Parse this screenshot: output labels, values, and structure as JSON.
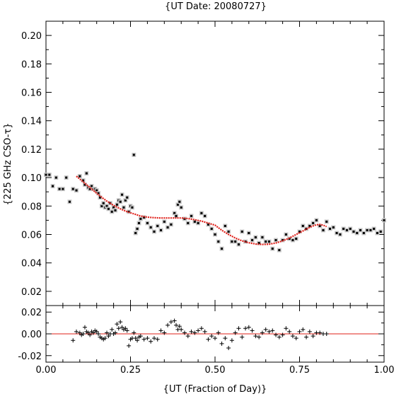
{
  "chart_data": {
    "type": "scatter",
    "title": "{UT Date: 20080727}",
    "xlabel": "{UT (Fraction of Day)}",
    "ylabel": "{225 GHz CSO-τ}",
    "xlim": [
      0.0,
      1.0
    ],
    "x_ticks": [
      "0.00",
      "0.25",
      "0.50",
      "0.75",
      "1.00"
    ],
    "main_panel": {
      "ylim": [
        0.01,
        0.21
      ],
      "y_ticks": [
        "0.02",
        "0.04",
        "0.06",
        "0.08",
        "0.10",
        "0.12",
        "0.14",
        "0.16",
        "0.18",
        "0.20"
      ],
      "series": [
        {
          "kind": "measurements",
          "color": "#000000",
          "x": [
            0.0,
            0.01,
            0.02,
            0.03,
            0.04,
            0.05,
            0.06,
            0.07,
            0.08,
            0.09,
            0.1,
            0.11,
            0.115,
            0.12,
            0.125,
            0.13,
            0.135,
            0.14,
            0.145,
            0.15,
            0.155,
            0.16,
            0.165,
            0.17,
            0.175,
            0.18,
            0.185,
            0.19,
            0.195,
            0.2,
            0.205,
            0.21,
            0.215,
            0.22,
            0.225,
            0.23,
            0.235,
            0.24,
            0.245,
            0.25,
            0.255,
            0.26,
            0.265,
            0.27,
            0.275,
            0.28,
            0.29,
            0.3,
            0.31,
            0.32,
            0.33,
            0.34,
            0.35,
            0.36,
            0.37,
            0.38,
            0.385,
            0.39,
            0.395,
            0.4,
            0.41,
            0.42,
            0.43,
            0.44,
            0.45,
            0.46,
            0.47,
            0.48,
            0.49,
            0.5,
            0.51,
            0.52,
            0.53,
            0.54,
            0.55,
            0.56,
            0.57,
            0.58,
            0.59,
            0.6,
            0.61,
            0.62,
            0.63,
            0.64,
            0.65,
            0.66,
            0.67,
            0.68,
            0.69,
            0.7,
            0.71,
            0.72,
            0.73,
            0.74,
            0.75,
            0.76,
            0.77,
            0.78,
            0.79,
            0.8,
            0.81,
            0.82,
            0.83,
            0.84,
            0.85,
            0.86,
            0.87,
            0.88,
            0.89,
            0.9,
            0.91,
            0.92,
            0.93,
            0.94,
            0.95,
            0.96,
            0.97,
            0.98,
            0.99,
            1.0
          ],
          "y": [
            0.102,
            0.102,
            0.094,
            0.1,
            0.092,
            0.092,
            0.1,
            0.083,
            0.092,
            0.091,
            0.101,
            0.098,
            0.095,
            0.103,
            0.093,
            0.092,
            0.094,
            0.092,
            0.092,
            0.091,
            0.089,
            0.086,
            0.08,
            0.082,
            0.079,
            0.08,
            0.078,
            0.082,
            0.076,
            0.079,
            0.077,
            0.081,
            0.084,
            0.083,
            0.088,
            0.079,
            0.084,
            0.086,
            0.076,
            0.08,
            0.079,
            0.116,
            0.061,
            0.064,
            0.068,
            0.071,
            0.072,
            0.068,
            0.065,
            0.062,
            0.066,
            0.063,
            0.069,
            0.065,
            0.067,
            0.075,
            0.073,
            0.081,
            0.083,
            0.079,
            0.071,
            0.068,
            0.073,
            0.069,
            0.068,
            0.075,
            0.073,
            0.067,
            0.064,
            0.06,
            0.055,
            0.05,
            0.066,
            0.062,
            0.055,
            0.055,
            0.053,
            0.062,
            0.055,
            0.061,
            0.056,
            0.058,
            0.054,
            0.058,
            0.055,
            0.055,
            0.05,
            0.056,
            0.049,
            0.056,
            0.06,
            0.057,
            0.056,
            0.057,
            0.062,
            0.066,
            0.064,
            0.066,
            0.068,
            0.07,
            0.066,
            0.063,
            0.069,
            0.064,
            0.065,
            0.061,
            0.06,
            0.064,
            0.063,
            0.064,
            0.062,
            0.061,
            0.063,
            0.061,
            0.063,
            0.063,
            0.064,
            0.061,
            0.062,
            0.07
          ]
        },
        {
          "kind": "fit",
          "color": "#e0201a",
          "x": [
            0.09,
            0.1,
            0.12,
            0.14,
            0.16,
            0.18,
            0.2,
            0.22,
            0.24,
            0.26,
            0.28,
            0.3,
            0.32,
            0.34,
            0.36,
            0.38,
            0.4,
            0.42,
            0.44,
            0.46,
            0.48,
            0.5,
            0.52,
            0.54,
            0.56,
            0.58,
            0.6,
            0.62,
            0.64,
            0.66,
            0.68,
            0.7,
            0.72,
            0.74,
            0.76,
            0.78,
            0.79,
            0.8,
            0.81,
            0.82,
            0.83
          ],
          "y": [
            0.101,
            0.099,
            0.095,
            0.091,
            0.087,
            0.0835,
            0.0805,
            0.078,
            0.076,
            0.0745,
            0.073,
            0.0722,
            0.0718,
            0.0716,
            0.0716,
            0.0716,
            0.0716,
            0.0712,
            0.0704,
            0.0694,
            0.068,
            0.0665,
            0.063,
            0.06,
            0.0575,
            0.0555,
            0.0542,
            0.0533,
            0.053,
            0.0532,
            0.054,
            0.0555,
            0.0575,
            0.06,
            0.0625,
            0.065,
            0.066,
            0.0668,
            0.067,
            0.0665,
            0.0655
          ]
        }
      ]
    },
    "residual_panel": {
      "ylim": [
        -0.026,
        0.026
      ],
      "y_ticks": [
        "0.02",
        "0.00",
        "-0.02"
      ],
      "zero_line_color": "#e0201a",
      "x": [
        0.08,
        0.09,
        0.1,
        0.105,
        0.11,
        0.115,
        0.12,
        0.125,
        0.13,
        0.135,
        0.14,
        0.145,
        0.15,
        0.155,
        0.16,
        0.165,
        0.17,
        0.175,
        0.18,
        0.185,
        0.19,
        0.195,
        0.2,
        0.205,
        0.21,
        0.215,
        0.22,
        0.225,
        0.23,
        0.235,
        0.24,
        0.245,
        0.25,
        0.255,
        0.26,
        0.265,
        0.27,
        0.275,
        0.28,
        0.29,
        0.3,
        0.31,
        0.32,
        0.33,
        0.34,
        0.35,
        0.36,
        0.37,
        0.38,
        0.385,
        0.39,
        0.395,
        0.4,
        0.41,
        0.42,
        0.43,
        0.44,
        0.45,
        0.46,
        0.47,
        0.48,
        0.49,
        0.5,
        0.51,
        0.52,
        0.53,
        0.54,
        0.55,
        0.56,
        0.57,
        0.58,
        0.59,
        0.6,
        0.61,
        0.62,
        0.63,
        0.64,
        0.65,
        0.66,
        0.67,
        0.68,
        0.69,
        0.7,
        0.71,
        0.72,
        0.73,
        0.74,
        0.75,
        0.76,
        0.77,
        0.78,
        0.79,
        0.8,
        0.81,
        0.82,
        0.83
      ],
      "y": [
        -0.006,
        0.002,
        0.001,
        -0.001,
        0.0,
        0.006,
        0.002,
        0.001,
        -0.001,
        0.002,
        0.001,
        0.003,
        0.002,
        0.0,
        -0.003,
        -0.004,
        -0.005,
        -0.004,
        0.001,
        -0.002,
        0.0,
        0.004,
        0.0,
        0.001,
        0.009,
        0.005,
        0.011,
        0.006,
        0.004,
        0.005,
        0.003,
        -0.011,
        -0.005,
        -0.004,
        0.001,
        -0.004,
        -0.006,
        -0.003,
        -0.002,
        -0.005,
        -0.004,
        -0.007,
        -0.004,
        -0.005,
        0.003,
        0.001,
        0.008,
        0.011,
        0.012,
        0.008,
        0.004,
        0.007,
        0.004,
        0.001,
        -0.002,
        0.002,
        0.001,
        0.003,
        0.005,
        0.002,
        -0.005,
        -0.002,
        -0.004,
        0.001,
        -0.009,
        -0.004,
        -0.013,
        -0.006,
        0.001,
        0.005,
        -0.003,
        0.005,
        0.006,
        0.003,
        -0.002,
        -0.003,
        0.001,
        0.004,
        0.002,
        0.003,
        -0.001,
        -0.003,
        -0.001,
        0.005,
        0.002,
        -0.002,
        -0.004,
        0.002,
        0.004,
        -0.003,
        0.002,
        -0.002,
        0.001,
        0.001,
        0.0,
        0.0
      ]
    }
  }
}
